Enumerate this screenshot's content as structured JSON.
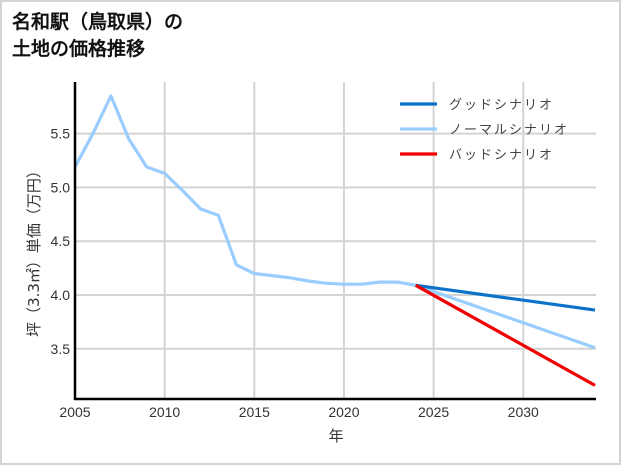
{
  "title": {
    "line1": "名和駅（鳥取県）の",
    "line2": "土地の価格推移"
  },
  "colors": {
    "good": "#0b72c9",
    "normal": "#99ccff",
    "bad": "#f00000",
    "grid": "#d3d3d3",
    "axis": "#000000",
    "border": "#d3d3d3"
  },
  "chart_data": {
    "type": "line",
    "title": "名和駅（鳥取県）の土地の価格推移",
    "xlabel": "年",
    "ylabel": "坪（3.3㎡）単価（万円）",
    "xlim": [
      2005,
      2034
    ],
    "ylim": [
      3.12,
      5.95
    ],
    "x_ticks": [
      2005,
      2010,
      2015,
      2020,
      2025,
      2030
    ],
    "y_ticks": [
      3.5,
      4.0,
      4.5,
      5.0,
      5.5
    ],
    "x_tick_labels": [
      "2005",
      "2010",
      "2015",
      "2020",
      "2025",
      "2030"
    ],
    "y_tick_labels": [
      "3.5",
      "4.0",
      "4.5",
      "5.0",
      "5.5"
    ],
    "grid": true,
    "legend_position": "upper right",
    "legend": [
      "グッドシナリオ",
      "ノーマルシナリオ",
      "バッドシナリオ"
    ],
    "series": [
      {
        "name": "グッドシナリオ",
        "color": "#0b72c9",
        "x": [
          2024,
          2034
        ],
        "values": [
          4.09,
          3.86
        ]
      },
      {
        "name": "ノーマルシナリオ",
        "color": "#99ccff",
        "x": [
          2005,
          2006,
          2007,
          2008,
          2009,
          2010,
          2011,
          2012,
          2013,
          2014,
          2015,
          2016,
          2017,
          2018,
          2019,
          2020,
          2021,
          2022,
          2023,
          2024,
          2034
        ],
        "values": [
          5.19,
          5.5,
          5.85,
          5.45,
          5.19,
          5.13,
          4.97,
          4.8,
          4.74,
          4.28,
          4.2,
          4.18,
          4.16,
          4.13,
          4.11,
          4.1,
          4.1,
          4.12,
          4.12,
          4.09,
          3.51
        ]
      },
      {
        "name": "バッドシナリオ",
        "color": "#f00000",
        "x": [
          2024,
          2034
        ],
        "values": [
          4.09,
          3.16
        ]
      }
    ]
  }
}
